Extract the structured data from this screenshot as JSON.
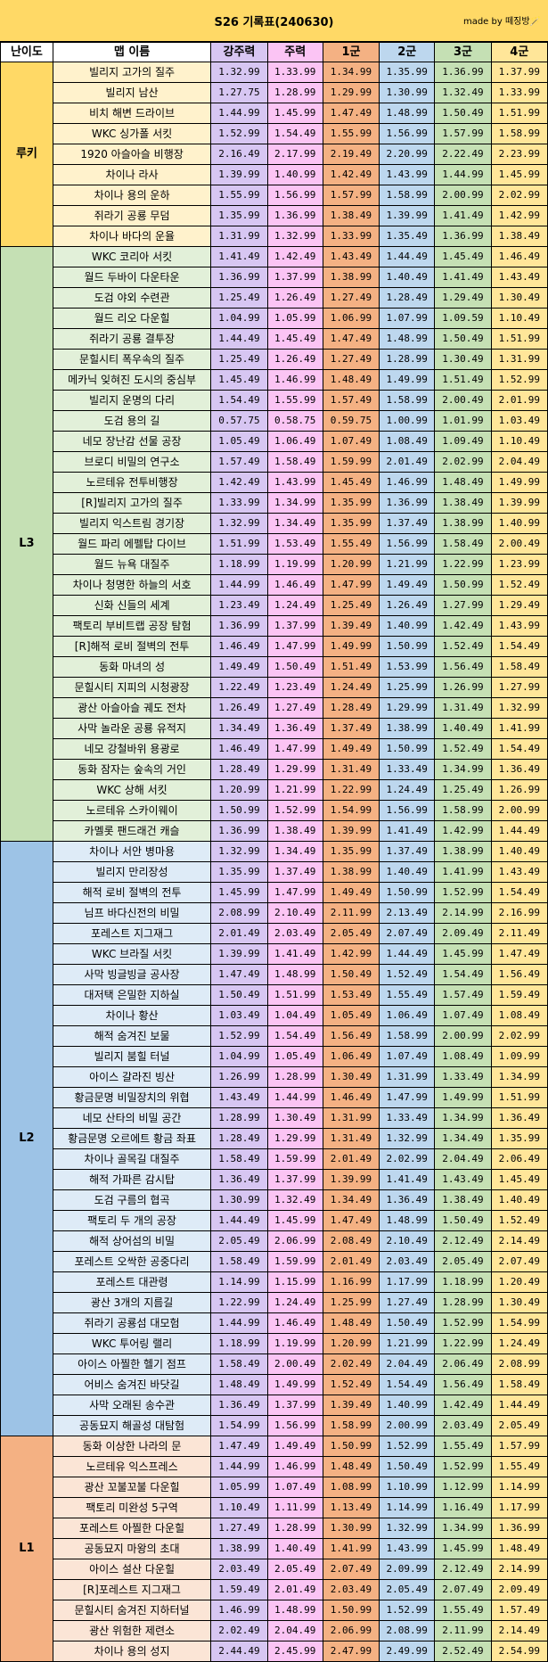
{
  "title": "S26 기록표(240630)",
  "credit": "made by 떼징방🪄",
  "columns": [
    "난이도",
    "맵 이름",
    "강주력",
    "주력",
    "1군",
    "2군",
    "3군",
    "4군"
  ],
  "tiers": [
    {
      "label": "루키",
      "key": "rookie",
      "rows": [
        [
          "빌리지 고가의 질주",
          "1.32.99",
          "1.33.99",
          "1.34.99",
          "1.35.99",
          "1.36.99",
          "1.37.99"
        ],
        [
          "빌리지 남산",
          "1.27.75",
          "1.28.99",
          "1.29.99",
          "1.30.99",
          "1.32.49",
          "1.33.99"
        ],
        [
          "비치 해변 드라이브",
          "1.44.99",
          "1.45.99",
          "1.47.49",
          "1.48.99",
          "1.50.49",
          "1.51.99"
        ],
        [
          "WKC 싱가폴 서킷",
          "1.52.99",
          "1.54.49",
          "1.55.99",
          "1.56.99",
          "1.57.99",
          "1.58.99"
        ],
        [
          "1920 아슬아슬 비행장",
          "2.16.49",
          "2.17.99",
          "2.19.49",
          "2.20.99",
          "2.22.49",
          "2.23.99"
        ],
        [
          "차이나 라사",
          "1.39.99",
          "1.40.99",
          "1.42.49",
          "1.43.99",
          "1.44.99",
          "1.45.99"
        ],
        [
          "차이나 용의 운하",
          "1.55.99",
          "1.56.99",
          "1.57.99",
          "1.58.99",
          "2.00.99",
          "2.02.99"
        ],
        [
          "쥐라기 공룡 무덤",
          "1.35.99",
          "1.36.99",
          "1.38.49",
          "1.39.99",
          "1.41.49",
          "1.42.99"
        ],
        [
          "차이나 바다의 운율",
          "1.31.99",
          "1.32.99",
          "1.33.99",
          "1.35.49",
          "1.36.99",
          "1.38.49"
        ]
      ]
    },
    {
      "label": "L3",
      "key": "l3",
      "rows": [
        [
          "WKC 코리아 서킷",
          "1.41.49",
          "1.42.49",
          "1.43.49",
          "1.44.49",
          "1.45.49",
          "1.46.49"
        ],
        [
          "월드 두바이 다운타운",
          "1.36.99",
          "1.37.99",
          "1.38.99",
          "1.40.49",
          "1.41.49",
          "1.43.49"
        ],
        [
          "도검 야외 수련관",
          "1.25.49",
          "1.26.49",
          "1.27.49",
          "1.28.49",
          "1.29.49",
          "1.30.49"
        ],
        [
          "월드 리오 다운힐",
          "1.04.99",
          "1.05.99",
          "1.06.99",
          "1.07.99",
          "1.09.59",
          "1.10.49"
        ],
        [
          "쥐라기 공룡 결투장",
          "1.44.49",
          "1.45.49",
          "1.47.49",
          "1.48.99",
          "1.50.49",
          "1.51.99"
        ],
        [
          "문힐시티 폭우속의 질주",
          "1.25.49",
          "1.26.49",
          "1.27.49",
          "1.28.99",
          "1.30.49",
          "1.31.99"
        ],
        [
          "메카닉 잊혀진 도시의 중심부",
          "1.45.49",
          "1.46.99",
          "1.48.49",
          "1.49.99",
          "1.51.49",
          "1.52.99"
        ],
        [
          "빌리지 운명의 다리",
          "1.54.49",
          "1.55.99",
          "1.57.49",
          "1.58.99",
          "2.00.49",
          "2.01.99"
        ],
        [
          "도검 용의 길",
          "0.57.75",
          "0.58.75",
          "0.59.75",
          "1.00.99",
          "1.01.99",
          "1.03.49"
        ],
        [
          "네모 장난감 선물 공장",
          "1.05.49",
          "1.06.49",
          "1.07.49",
          "1.08.49",
          "1.09.49",
          "1.10.49"
        ],
        [
          "브로디 비밀의 연구소",
          "1.57.49",
          "1.58.49",
          "1.59.99",
          "2.01.49",
          "2.02.99",
          "2.04.49"
        ],
        [
          "노르테유 전투비행장",
          "1.42.49",
          "1.43.99",
          "1.45.49",
          "1.46.99",
          "1.48.49",
          "1.49.99"
        ],
        [
          "[R]빌리지 고가의 질주",
          "1.33.99",
          "1.34.99",
          "1.35.99",
          "1.36.99",
          "1.38.49",
          "1.39.99"
        ],
        [
          "빌리지 익스트림 경기장",
          "1.32.99",
          "1.34.49",
          "1.35.99",
          "1.37.49",
          "1.38.99",
          "1.40.99"
        ],
        [
          "월드 파리 에펠탑 다이브",
          "1.51.99",
          "1.53.49",
          "1.55.49",
          "1.56.99",
          "1.58.49",
          "2.00.49"
        ],
        [
          "월드 뉴욕 대질주",
          "1.18.99",
          "1.19.99",
          "1.20.99",
          "1.21.99",
          "1.22.99",
          "1.23.99"
        ],
        [
          "차이나 청명한 하늘의 서호",
          "1.44.99",
          "1.46.49",
          "1.47.99",
          "1.49.49",
          "1.50.99",
          "1.52.49"
        ],
        [
          "신화 신들의 세계",
          "1.23.49",
          "1.24.49",
          "1.25.49",
          "1.26.49",
          "1.27.99",
          "1.29.49"
        ],
        [
          "팩토리 부비트랩 공장 탐험",
          "1.36.99",
          "1.37.99",
          "1.39.49",
          "1.40.99",
          "1.42.49",
          "1.43.99"
        ],
        [
          "[R]해적 로비 절벽의 전투",
          "1.46.49",
          "1.47.99",
          "1.49.99",
          "1.50.99",
          "1.52.49",
          "1.54.49"
        ],
        [
          "동화 마녀의 성",
          "1.49.49",
          "1.50.49",
          "1.51.49",
          "1.53.99",
          "1.56.49",
          "1.58.49"
        ],
        [
          "문힐시티 지피의 시청광장",
          "1.22.49",
          "1.23.49",
          "1.24.49",
          "1.25.99",
          "1.26.99",
          "1.27.99"
        ],
        [
          "광산 아슬아슬 궤도 전차",
          "1.26.49",
          "1.27.49",
          "1.28.49",
          "1.29.99",
          "1.31.49",
          "1.32.99"
        ],
        [
          "사막 놀라운 공룡 유적지",
          "1.34.49",
          "1.36.49",
          "1.37.49",
          "1.38.99",
          "1.40.49",
          "1.41.99"
        ],
        [
          "네모 강철바위 용광로",
          "1.46.49",
          "1.47.99",
          "1.49.49",
          "1.50.99",
          "1.52.49",
          "1.54.49"
        ],
        [
          "동화 잠자는 숲속의 거인",
          "1.28.49",
          "1.29.99",
          "1.31.49",
          "1.33.49",
          "1.34.99",
          "1.36.49"
        ],
        [
          "WKC 상해 서킷",
          "1.20.99",
          "1.21.99",
          "1.22.99",
          "1.24.49",
          "1.25.49",
          "1.26.99"
        ],
        [
          "노르테유 스카이웨이",
          "1.50.99",
          "1.52.99",
          "1.54.99",
          "1.56.99",
          "1.58.99",
          "2.00.99"
        ],
        [
          "카멜롯 팬드래건 캐슬",
          "1.36.99",
          "1.38.49",
          "1.39.99",
          "1.41.49",
          "1.42.99",
          "1.44.49"
        ]
      ]
    },
    {
      "label": "L2",
      "key": "l2",
      "rows": [
        [
          "차이나 서안 병마용",
          "1.32.99",
          "1.34.49",
          "1.35.99",
          "1.37.49",
          "1.38.99",
          "1.40.49"
        ],
        [
          "빌리지 만리장성",
          "1.35.99",
          "1.37.49",
          "1.38.99",
          "1.40.49",
          "1.41.99",
          "1.43.49"
        ],
        [
          "해적 로비 절벽의 전투",
          "1.45.99",
          "1.47.99",
          "1.49.49",
          "1.50.99",
          "1.52.99",
          "1.54.49"
        ],
        [
          "님프 바다신전의 비밀",
          "2.08.99",
          "2.10.49",
          "2.11.99",
          "2.13.49",
          "2.14.99",
          "2.16.99"
        ],
        [
          "포레스트 지그재그",
          "2.01.49",
          "2.03.49",
          "2.05.49",
          "2.07.49",
          "2.09.49",
          "2.11.49"
        ],
        [
          "WKC 브라질 서킷",
          "1.39.99",
          "1.41.49",
          "1.42.99",
          "1.44.49",
          "1.45.99",
          "1.47.49"
        ],
        [
          "사막 빙글빙글 공사장",
          "1.47.49",
          "1.48.99",
          "1.50.49",
          "1.52.49",
          "1.54.49",
          "1.56.49"
        ],
        [
          "대저택 은밀한 지하실",
          "1.50.49",
          "1.51.99",
          "1.53.49",
          "1.55.49",
          "1.57.49",
          "1.59.49"
        ],
        [
          "차이나 황산",
          "1.03.49",
          "1.04.49",
          "1.05.49",
          "1.06.49",
          "1.07.49",
          "1.08.49"
        ],
        [
          "해적 숨겨진 보물",
          "1.52.99",
          "1.54.49",
          "1.56.49",
          "1.58.99",
          "2.00.99",
          "2.02.99"
        ],
        [
          "빌리지 붐힐 터널",
          "1.04.99",
          "1.05.49",
          "1.06.49",
          "1.07.49",
          "1.08.49",
          "1.09.99"
        ],
        [
          "아이스 갈라진 빙산",
          "1.26.99",
          "1.28.99",
          "1.30.49",
          "1.31.99",
          "1.33.49",
          "1.34.99"
        ],
        [
          "황금문명 비밀장치의 위협",
          "1.43.49",
          "1.44.99",
          "1.46.49",
          "1.47.99",
          "1.49.99",
          "1.51.99"
        ],
        [
          "네모 산타의 비밀 공간",
          "1.28.99",
          "1.30.49",
          "1.31.99",
          "1.33.49",
          "1.34.99",
          "1.36.49"
        ],
        [
          "황금문명 오르에트 황금 좌표",
          "1.28.49",
          "1.29.99",
          "1.31.49",
          "1.32.99",
          "1.34.49",
          "1.35.99"
        ],
        [
          "차이나 골목길 대질주",
          "1.58.49",
          "1.59.99",
          "2.01.49",
          "2.02.99",
          "2.04.49",
          "2.06.49"
        ],
        [
          "해적 가파른 감시탑",
          "1.36.49",
          "1.37.99",
          "1.39.99",
          "1.41.49",
          "1.43.49",
          "1.45.49"
        ],
        [
          "도검 구름의 협곡",
          "1.30.99",
          "1.32.49",
          "1.34.49",
          "1.36.49",
          "1.38.49",
          "1.40.49"
        ],
        [
          "팩토리 두 개의 공장",
          "1.44.49",
          "1.45.99",
          "1.47.49",
          "1.48.99",
          "1.50.49",
          "1.52.49"
        ],
        [
          "해적 상어섬의 비밀",
          "2.05.49",
          "2.06.99",
          "2.08.49",
          "2.10.49",
          "2.12.49",
          "2.14.49"
        ],
        [
          "포레스트 오싹한 공중다리",
          "1.58.49",
          "1.59.99",
          "2.01.49",
          "2.03.49",
          "2.05.49",
          "2.07.49"
        ],
        [
          "포레스트 대관령",
          "1.14.99",
          "1.15.99",
          "1.16.99",
          "1.17.99",
          "1.18.99",
          "1.20.49"
        ],
        [
          "광산 3개의 지름길",
          "1.22.99",
          "1.24.49",
          "1.25.99",
          "1.27.49",
          "1.28.99",
          "1.30.49"
        ],
        [
          "쥐라기 공룡섬 대모험",
          "1.44.99",
          "1.46.49",
          "1.48.49",
          "1.50.49",
          "1.52.99",
          "1.54.99"
        ],
        [
          "WKC 투어링 랠리",
          "1.18.99",
          "1.19.99",
          "1.20.99",
          "1.21.99",
          "1.22.99",
          "1.24.49"
        ],
        [
          "아이스 아찔한 헬기 점프",
          "1.58.49",
          "2.00.49",
          "2.02.49",
          "2.04.49",
          "2.06.49",
          "2.08.99"
        ],
        [
          "어비스 숨겨진 바닷길",
          "1.48.49",
          "1.49.99",
          "1.52.49",
          "1.54.49",
          "1.56.49",
          "1.58.49"
        ],
        [
          "사막 오래된 송수관",
          "1.36.49",
          "1.37.99",
          "1.39.49",
          "1.40.99",
          "1.42.49",
          "1.44.49"
        ],
        [
          "공동묘지 해골성 대탐험",
          "1.54.99",
          "1.56.99",
          "1.58.99",
          "2.00.99",
          "2.03.49",
          "2.05.49"
        ]
      ]
    },
    {
      "label": "L1",
      "key": "l1",
      "rows": [
        [
          "동화 이상한 나라의 문",
          "1.47.49",
          "1.49.49",
          "1.50.99",
          "1.52.99",
          "1.55.49",
          "1.57.99"
        ],
        [
          "노르테유 익스프레스",
          "1.44.99",
          "1.46.99",
          "1.48.49",
          "1.50.49",
          "1.52.99",
          "1.55.49"
        ],
        [
          "광산 꼬불꼬불 다운힐",
          "1.05.99",
          "1.07.49",
          "1.08.99",
          "1.10.99",
          "1.12.99",
          "1.14.99"
        ],
        [
          "팩토리 미완성 5구역",
          "1.10.49",
          "1.11.99",
          "1.13.49",
          "1.14.99",
          "1.16.49",
          "1.17.99"
        ],
        [
          "포레스트 아찔한 다운힐",
          "1.27.49",
          "1.28.99",
          "1.30.99",
          "1.32.99",
          "1.34.99",
          "1.36.99"
        ],
        [
          "공동묘지 마왕의 초대",
          "1.38.99",
          "1.40.49",
          "1.41.99",
          "1.43.99",
          "1.45.99",
          "1.48.49"
        ],
        [
          "아이스 설산 다운힐",
          "2.03.49",
          "2.05.49",
          "2.07.49",
          "2.09.99",
          "2.12.49",
          "2.14.99"
        ],
        [
          "[R]포레스트 지그재그",
          "1.59.49",
          "2.01.49",
          "2.03.49",
          "2.05.49",
          "2.07.49",
          "2.09.49"
        ],
        [
          "문힐시티 숨겨진 지하터널",
          "1.46.99",
          "1.48.99",
          "1.50.99",
          "1.52.99",
          "1.55.49",
          "1.57.49"
        ],
        [
          "광산 위험한 제련소",
          "2.02.49",
          "2.04.49",
          "2.06.99",
          "2.08.99",
          "2.11.99",
          "2.14.49"
        ],
        [
          "차이나 용의 성지",
          "2.44.49",
          "2.45.99",
          "2.47.99",
          "2.49.99",
          "2.52.49",
          "2.54.99"
        ]
      ]
    }
  ]
}
